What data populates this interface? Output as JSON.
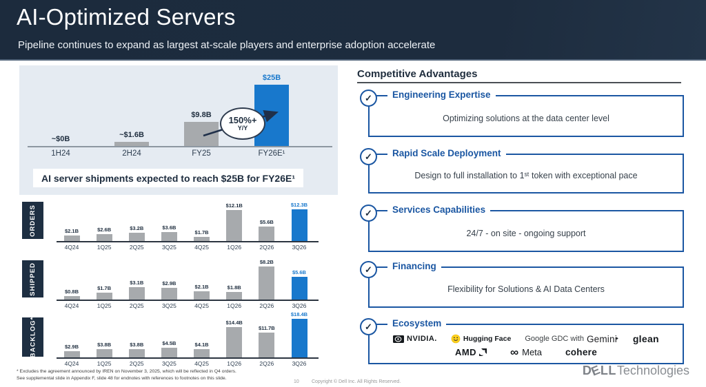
{
  "colors": {
    "header_bg": "#1c2b3d",
    "accent_blue": "#1a56a2",
    "bar_blue": "#1878cc",
    "bar_gray": "#a7aaad",
    "panel_bg": "#e5ebf2",
    "navy": "#1e2f42",
    "value_label": "#1e2d3e"
  },
  "header": {
    "title": "AI-Optimized Servers",
    "subtitle": "Pipeline continues to expand as largest at-scale players and enterprise adoption accelerate"
  },
  "main_chart": {
    "banner": "AI server shipments expected to reach $25B for FY26E¹",
    "callout_pct": "150%+",
    "callout_sub": "Y/Y"
  },
  "chart_data": [
    {
      "type": "bar",
      "name": "ai-server-shipments",
      "unit": "$B",
      "ylim": [
        0,
        25
      ],
      "categories": [
        "1H24",
        "2H24",
        "FY25",
        "FY26E¹"
      ],
      "values": [
        0,
        1.6,
        9.8,
        25
      ],
      "value_labels": [
        "~$0B",
        "~$1.6B",
        "$9.8B",
        "$25B"
      ],
      "highlight_index": 3,
      "annotation": "150%+ Y/Y"
    },
    {
      "type": "bar",
      "name": "orders",
      "title": "ORDERS",
      "unit": "$B",
      "categories": [
        "4Q24",
        "1Q25",
        "2Q25",
        "3Q25",
        "4Q25",
        "1Q26",
        "2Q26",
        "3Q26"
      ],
      "values": [
        2.1,
        2.6,
        3.2,
        3.6,
        1.7,
        12.1,
        5.6,
        12.3
      ],
      "value_labels": [
        "$2.1B",
        "$2.6B",
        "$3.2B",
        "$3.6B",
        "$1.7B",
        "$12.1B",
        "$5.6B",
        "$12.3B"
      ],
      "highlight_index": 7
    },
    {
      "type": "bar",
      "name": "shipped",
      "title": "SHIPPED",
      "unit": "$B",
      "categories": [
        "4Q24",
        "1Q25",
        "2Q25",
        "3Q25",
        "4Q25",
        "1Q26",
        "2Q26",
        "3Q26"
      ],
      "values": [
        0.8,
        1.7,
        3.1,
        2.9,
        2.1,
        1.8,
        8.2,
        5.6
      ],
      "value_labels": [
        "$0.8B",
        "$1.7B",
        "$3.1B",
        "$2.9B",
        "$2.1B",
        "$1.8B",
        "$8.2B",
        "$5.6B"
      ],
      "highlight_index": 7
    },
    {
      "type": "bar",
      "name": "backlog",
      "title": "BACKLOG*",
      "unit": "$B",
      "categories": [
        "4Q24",
        "1Q25",
        "2Q25",
        "3Q25",
        "4Q25",
        "1Q26",
        "2Q26",
        "3Q26"
      ],
      "values": [
        2.9,
        3.8,
        3.8,
        4.5,
        4.1,
        14.4,
        11.7,
        18.4
      ],
      "value_labels": [
        "$2.9B",
        "$3.8B",
        "$3.8B",
        "$4.5B",
        "$4.1B",
        "$14.4B",
        "$11.7B",
        "$18.4B"
      ],
      "highlight_index": 7
    }
  ],
  "competitive": {
    "heading": "Competitive Advantages",
    "check": "✓",
    "items": [
      {
        "title": "Engineering Expertise",
        "desc": "Optimizing solutions at the data center level"
      },
      {
        "title": "Rapid Scale Deployment",
        "desc": "Design to full installation to 1ˢᵗ token with exceptional pace"
      },
      {
        "title": "Services Capabilities",
        "desc": "24/7 - on site - ongoing support"
      },
      {
        "title": "Financing",
        "desc": "Flexibility for Solutions & AI Data Centers"
      },
      {
        "title": "Ecosystem"
      }
    ],
    "ecosystem_logos": {
      "nvidia": "NVIDIA.",
      "huggingface": "Hugging Face",
      "google_prefix": "Google GDC with",
      "gemini": "Gemini",
      "gemini_star": "✦",
      "glean": "glean",
      "amd": "AMD",
      "meta": "Meta",
      "meta_symbol": "∞",
      "cohere": "cohere"
    }
  },
  "footer": {
    "footnote1": "* Excludes the agreement announced by IREN on November 3, 2025, which will be reflected in Q4 orders.",
    "footnote2": "See supplemental slide in Appendix F, slide 48 for endnotes with references to footnotes on this slide.",
    "page_number": "10",
    "copyright": "Copyright © Dell Inc. All Rights Reserved.",
    "dell_logo": {
      "d": "D",
      "e": "E",
      "ll": "LL",
      "suffix": "Technologies"
    }
  }
}
